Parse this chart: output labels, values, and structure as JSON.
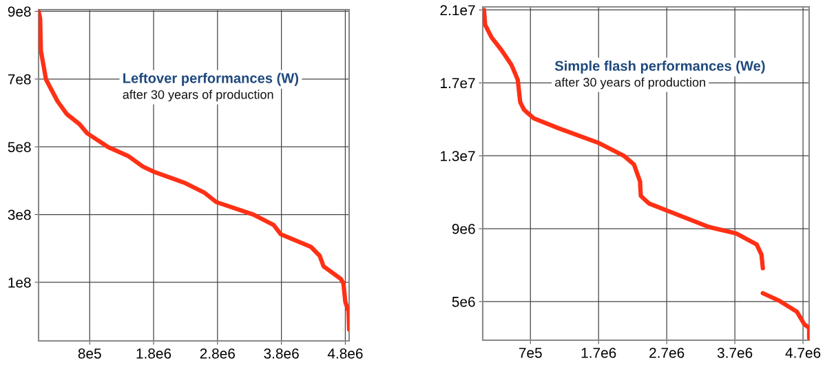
{
  "chart_data": [
    {
      "type": "line",
      "title": "Leftover performances (W)",
      "subtitle": "after 30 years of production",
      "series": [
        {
          "color": "#ff3015",
          "x": [
            0,
            25000,
            36000,
            116000,
            295000,
            440000,
            640000,
            760000,
            1090000,
            1410000,
            1630000,
            1810000,
            2280000,
            2600000,
            2780000,
            3360000,
            3680000,
            3790000,
            4260000,
            4400000,
            4460000,
            4730000,
            4770000,
            4800000,
            4850000,
            4860000
          ],
          "values": [
            900000000,
            878000000,
            784000000,
            699000000,
            635000000,
            597000000,
            567000000,
            540000000,
            499000000,
            472000000,
            442000000,
            426000000,
            394000000,
            364000000,
            337000000,
            300000000,
            269000000,
            242000000,
            205000000,
            178000000,
            147000000,
            110000000,
            97000000,
            42000000,
            15000000,
            -39000000
          ]
        }
      ],
      "xlim": [
        0,
        4860000
      ],
      "ylim": [
        -73000000,
        905000000
      ],
      "xticks": [
        {
          "value": 800000,
          "label": "8e5"
        },
        {
          "value": 1800000,
          "label": "1.8e6"
        },
        {
          "value": 2800000,
          "label": "2.8e6"
        },
        {
          "value": 3800000,
          "label": "3.8e6"
        },
        {
          "value": 4800000,
          "label": "4.8e6"
        }
      ],
      "yticks": [
        {
          "value": 100000000,
          "label": "1e8"
        },
        {
          "value": 300000000,
          "label": "3e8"
        },
        {
          "value": 500000000,
          "label": "5e8"
        },
        {
          "value": 700000000,
          "label": "7e8"
        },
        {
          "value": 900000000,
          "label": "9e8"
        }
      ],
      "grid": true,
      "line_style": "solid",
      "marker": "none"
    },
    {
      "type": "line",
      "title": "Simple flash performances (We)",
      "subtitle": "after 30 years of production",
      "series": [
        {
          "color": "#ff3015",
          "x": [
            18000,
            36000,
            128000,
            275000,
            420000,
            514000,
            550000,
            605000,
            750000,
            1120000,
            1710000,
            2070000,
            2220000,
            2310000,
            2310000,
            2320000,
            2440000,
            2720000,
            3320000,
            3720000,
            4020000,
            4090000,
            4110000,
            null,
            4110000,
            4350000,
            4610000,
            4720000,
            4790000,
            4790000
          ],
          "values": [
            21000000,
            20180000,
            19500000,
            18800000,
            18000000,
            17170000,
            15940000,
            15530000,
            15050000,
            14500000,
            13690000,
            13000000,
            12520000,
            11570000,
            11410000,
            10800000,
            10380000,
            9970000,
            9090000,
            8740000,
            8130000,
            7580000,
            6830000,
            null,
            5460000,
            5050000,
            4440000,
            3750000,
            3550000,
            3000000
          ]
        }
      ],
      "xlim": [
        0,
        4790000
      ],
      "ylim": [
        2880000,
        21170000
      ],
      "xticks": [
        {
          "value": 700000,
          "label": "7e5"
        },
        {
          "value": 1700000,
          "label": "1.7e6"
        },
        {
          "value": 2700000,
          "label": "2.7e6"
        },
        {
          "value": 3700000,
          "label": "3.7e6"
        },
        {
          "value": 4700000,
          "label": "4.7e6"
        }
      ],
      "yticks": [
        {
          "value": 5000000,
          "label": "5e6"
        },
        {
          "value": 9000000,
          "label": "9e6"
        },
        {
          "value": 13000000,
          "label": "1.3e7"
        },
        {
          "value": 17000000,
          "label": "1.7e7"
        },
        {
          "value": 21000000,
          "label": "2.1e7"
        }
      ],
      "grid": true,
      "line_style": "solid",
      "marker": "none"
    }
  ]
}
